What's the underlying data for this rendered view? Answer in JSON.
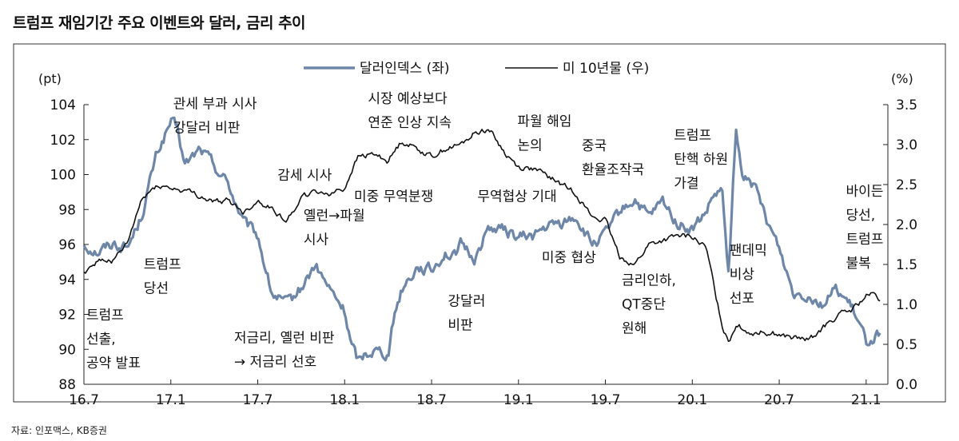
{
  "title": "트럼프 재임기간 주요 이벤트와 달러, 금리 추이",
  "source": "자료: 인포맥스, KB증권",
  "chart_data": {
    "type": "line",
    "left_axis": {
      "label": "(pt)",
      "range": [
        88,
        104
      ],
      "ticks": [
        "88",
        "90",
        "92",
        "94",
        "96",
        "98",
        "100",
        "102",
        "104"
      ]
    },
    "right_axis": {
      "label": "(%)",
      "range": [
        0.0,
        3.5
      ],
      "ticks": [
        "0.0",
        "0.5",
        "1.0",
        "1.5",
        "2.0",
        "2.5",
        "3.0",
        "3.5"
      ]
    },
    "x_ticks": [
      "16.7",
      "17.1",
      "17.7",
      "18.1",
      "18.7",
      "19.1",
      "19.7",
      "20.1",
      "20.7",
      "21.1"
    ],
    "legend_position": "top-center",
    "series": [
      {
        "name": "달러인덱스 (좌)",
        "axis": "left",
        "color": "#6e87a8",
        "x": [
          2016.5,
          2016.58,
          2016.67,
          2016.75,
          2016.83,
          2016.92,
          2017.0,
          2017.04,
          2017.08,
          2017.17,
          2017.25,
          2017.33,
          2017.42,
          2017.5,
          2017.58,
          2017.67,
          2017.75,
          2017.83,
          2017.92,
          2018.0,
          2018.04,
          2018.08,
          2018.12,
          2018.17,
          2018.25,
          2018.29,
          2018.33,
          2018.42,
          2018.5,
          2018.58,
          2018.62,
          2018.67,
          2018.75,
          2018.83,
          2018.92,
          2019.0,
          2019.08,
          2019.17,
          2019.25,
          2019.33,
          2019.42,
          2019.5,
          2019.58,
          2019.67,
          2019.75,
          2019.83,
          2019.92,
          2020.0,
          2020.08,
          2020.12,
          2020.17,
          2020.21,
          2020.25,
          2020.29,
          2020.33,
          2020.42,
          2020.5,
          2020.58,
          2020.67,
          2020.75,
          2020.83,
          2020.92,
          2021.0,
          2021.08
        ],
        "y": [
          96.0,
          95.6,
          96.1,
          95.8,
          97.6,
          101.2,
          103.0,
          102.5,
          100.5,
          101.5,
          100.5,
          99.5,
          97.2,
          96.5,
          93.2,
          92.5,
          93.5,
          94.8,
          93.3,
          92.2,
          90.2,
          89.3,
          89.8,
          90.0,
          89.8,
          92.2,
          93.5,
          94.8,
          94.5,
          95.6,
          95.2,
          96.0,
          95.2,
          97.0,
          96.8,
          96.4,
          96.5,
          97.0,
          97.2,
          97.6,
          96.0,
          96.5,
          97.8,
          98.6,
          97.5,
          98.4,
          97.2,
          96.8,
          97.8,
          98.7,
          99.0,
          94.2,
          102.5,
          99.5,
          100.0,
          97.6,
          95.8,
          93.3,
          93.2,
          92.6,
          93.5,
          92.3,
          90.4,
          91.0
        ]
      },
      {
        "name": "미 10년물 (우)",
        "axis": "right",
        "color": "#111111",
        "x": [
          2016.5,
          2016.58,
          2016.67,
          2016.75,
          2016.83,
          2016.92,
          2017.0,
          2017.08,
          2017.17,
          2017.25,
          2017.33,
          2017.42,
          2017.5,
          2017.58,
          2017.67,
          2017.75,
          2017.83,
          2017.92,
          2018.0,
          2018.04,
          2018.08,
          2018.17,
          2018.25,
          2018.33,
          2018.42,
          2018.5,
          2018.58,
          2018.67,
          2018.75,
          2018.83,
          2018.92,
          2019.0,
          2019.08,
          2019.17,
          2019.25,
          2019.33,
          2019.42,
          2019.5,
          2019.58,
          2019.67,
          2019.75,
          2019.83,
          2019.92,
          2020.0,
          2020.08,
          2020.17,
          2020.21,
          2020.25,
          2020.33,
          2020.42,
          2020.5,
          2020.58,
          2020.67,
          2020.75,
          2020.83,
          2020.92,
          2021.0,
          2021.04,
          2021.08
        ],
        "y": [
          1.4,
          1.55,
          1.55,
          1.75,
          2.3,
          2.5,
          2.45,
          2.42,
          2.35,
          2.28,
          2.3,
          2.15,
          2.3,
          2.2,
          2.05,
          2.35,
          2.4,
          2.4,
          2.45,
          2.68,
          2.85,
          2.88,
          2.8,
          3.05,
          2.95,
          2.85,
          2.95,
          3.0,
          3.15,
          3.2,
          2.9,
          2.72,
          2.7,
          2.6,
          2.5,
          2.4,
          2.1,
          2.05,
          1.6,
          1.5,
          1.75,
          1.8,
          1.85,
          1.85,
          1.7,
          0.75,
          0.55,
          0.75,
          0.65,
          0.66,
          0.62,
          0.58,
          0.55,
          0.7,
          0.85,
          0.93,
          1.1,
          1.12,
          1.05
        ]
      }
    ],
    "annotations": [
      {
        "lines": [
          "관세 부과 시사",
          "강달러 비판"
        ],
        "x": 2017.0,
        "y": 103.8,
        "axis": "left",
        "anchor": "start"
      },
      {
        "lines": [
          "트럼프",
          "당선"
        ],
        "x": 2016.83,
        "y": 94.6,
        "axis": "left",
        "anchor": "start"
      },
      {
        "lines": [
          "트럼프",
          "선출,",
          "공약 발표"
        ],
        "x": 2016.5,
        "y": 91.7,
        "axis": "left",
        "anchor": "start"
      },
      {
        "lines": [
          "감세 시사"
        ],
        "x": 2017.6,
        "y": 99.7,
        "axis": "left",
        "anchor": "start"
      },
      {
        "lines": [
          "옐런→파월",
          "시사"
        ],
        "x": 2017.75,
        "y": 97.4,
        "axis": "left",
        "anchor": "start"
      },
      {
        "lines": [
          "저금리, 옐런 비판",
          "→ 저금리 선호"
        ],
        "x": 2017.35,
        "y": 90.4,
        "axis": "left",
        "anchor": "start"
      },
      {
        "lines": [
          "시장 예상보다",
          "연준 인상 지속"
        ],
        "x": 2018.12,
        "y": 104.1,
        "axis": "left",
        "anchor": "start"
      },
      {
        "lines": [
          "미중 무역분쟁"
        ],
        "x": 2018.04,
        "y": 98.5,
        "axis": "left",
        "anchor": "start"
      },
      {
        "lines": [
          "강달러",
          "비판"
        ],
        "x": 2018.58,
        "y": 92.5,
        "axis": "left",
        "anchor": "start"
      },
      {
        "lines": [
          "무역협상 기대"
        ],
        "x": 2018.75,
        "y": 98.5,
        "axis": "left",
        "anchor": "start"
      },
      {
        "lines": [
          "파월 해임",
          "논의"
        ],
        "x": 2018.98,
        "y": 102.8,
        "axis": "left",
        "anchor": "start"
      },
      {
        "lines": [
          "중국",
          "환율조작국"
        ],
        "x": 2019.35,
        "y": 101.4,
        "axis": "left",
        "anchor": "start"
      },
      {
        "lines": [
          "미중 협상"
        ],
        "x": 2019.12,
        "y": 95.0,
        "axis": "left",
        "anchor": "start"
      },
      {
        "lines": [
          "금리인하,",
          "QT중단",
          "원해"
        ],
        "x": 2019.58,
        "y": 93.7,
        "axis": "left",
        "anchor": "start"
      },
      {
        "lines": [
          "트럼프",
          "탄핵 하원",
          "가결"
        ],
        "x": 2019.88,
        "y": 102.0,
        "axis": "left",
        "anchor": "start"
      },
      {
        "lines": [
          "팬데믹",
          "비상",
          "선포"
        ],
        "x": 2020.2,
        "y": 95.4,
        "axis": "left",
        "anchor": "start"
      },
      {
        "lines": [
          "바이든",
          "당선,",
          "트럼프",
          "불복"
        ],
        "x": 2020.87,
        "y": 98.8,
        "axis": "left",
        "anchor": "start"
      }
    ]
  }
}
